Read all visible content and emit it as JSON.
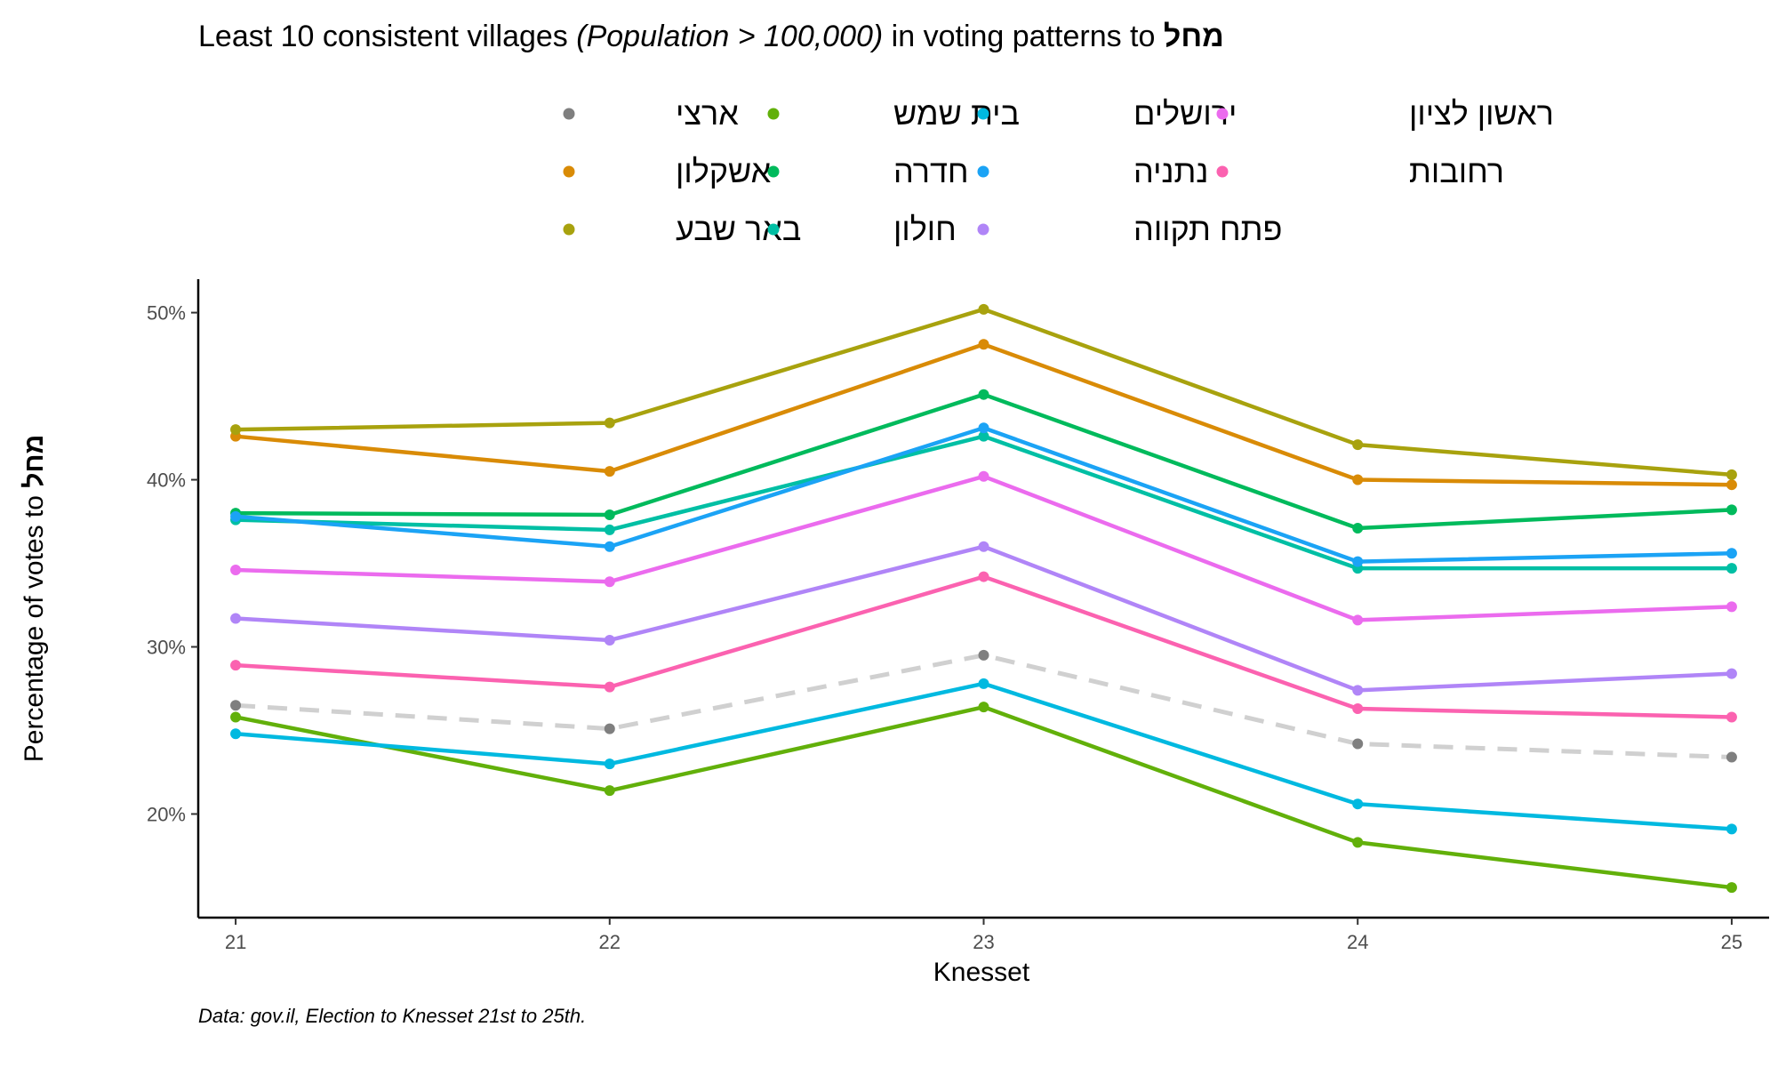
{
  "chart_data": {
    "type": "line",
    "title": {
      "part1": "Least 10 consistent villages ",
      "part2_italic": "(Population > 100,000)",
      "part3": " in voting patterns to ",
      "part4_bold": "מחל"
    },
    "xlabel": "Knesset",
    "ylabel": "Percentage of votes to",
    "ylabel_bold": "מחל",
    "caption": "Data: gov.il, Election to Knesset 21st to 25th.",
    "x": [
      21,
      22,
      23,
      24,
      25
    ],
    "x_tick_labels": [
      "21",
      "22",
      "23",
      "24",
      "25"
    ],
    "y_ticks": [
      20,
      30,
      40,
      50
    ],
    "y_tick_labels": [
      "20%",
      "30%",
      "40%",
      "50%"
    ],
    "ylim": [
      13.8,
      52
    ],
    "xlim": [
      20.9,
      25.1
    ],
    "legend_position": "top",
    "grid": false,
    "series": [
      {
        "name": "ארצי",
        "color": "#7f7f7f",
        "dashed": true,
        "values": [
          26.5,
          25.1,
          29.5,
          24.2,
          23.4
        ]
      },
      {
        "name": "אשקלון",
        "color": "#d98b06",
        "dashed": false,
        "values": [
          42.6,
          40.5,
          48.1,
          40.0,
          39.7
        ]
      },
      {
        "name": "באר שבע",
        "color": "#a8a20e",
        "dashed": false,
        "values": [
          43.0,
          43.4,
          50.2,
          42.1,
          40.3
        ]
      },
      {
        "name": "בית שמש",
        "color": "#62b00a",
        "dashed": false,
        "values": [
          25.8,
          21.4,
          26.4,
          18.3,
          15.6
        ]
      },
      {
        "name": "חדרה",
        "color": "#00ba5c",
        "dashed": false,
        "values": [
          38.0,
          37.9,
          45.1,
          37.1,
          38.2
        ]
      },
      {
        "name": "חולון",
        "color": "#00bfa4",
        "dashed": false,
        "values": [
          37.6,
          37.0,
          42.6,
          34.7,
          34.7
        ]
      },
      {
        "name": "ירושלים",
        "color": "#00b9e0",
        "dashed": false,
        "values": [
          24.8,
          23.0,
          27.8,
          20.6,
          19.1
        ]
      },
      {
        "name": "נתניה",
        "color": "#1ba3f5",
        "dashed": false,
        "values": [
          37.8,
          36.0,
          43.1,
          35.1,
          35.6
        ]
      },
      {
        "name": "פתח תקווה",
        "color": "#b085f7",
        "dashed": false,
        "values": [
          31.7,
          30.4,
          36.0,
          27.4,
          28.4
        ]
      },
      {
        "name": "ראשון לציון",
        "color": "#eb6bee",
        "dashed": false,
        "values": [
          34.6,
          33.9,
          40.2,
          31.6,
          32.4
        ]
      },
      {
        "name": "רחובות",
        "color": "#fb62b0",
        "dashed": false,
        "values": [
          28.9,
          27.6,
          34.2,
          26.3,
          25.8
        ]
      }
    ]
  }
}
